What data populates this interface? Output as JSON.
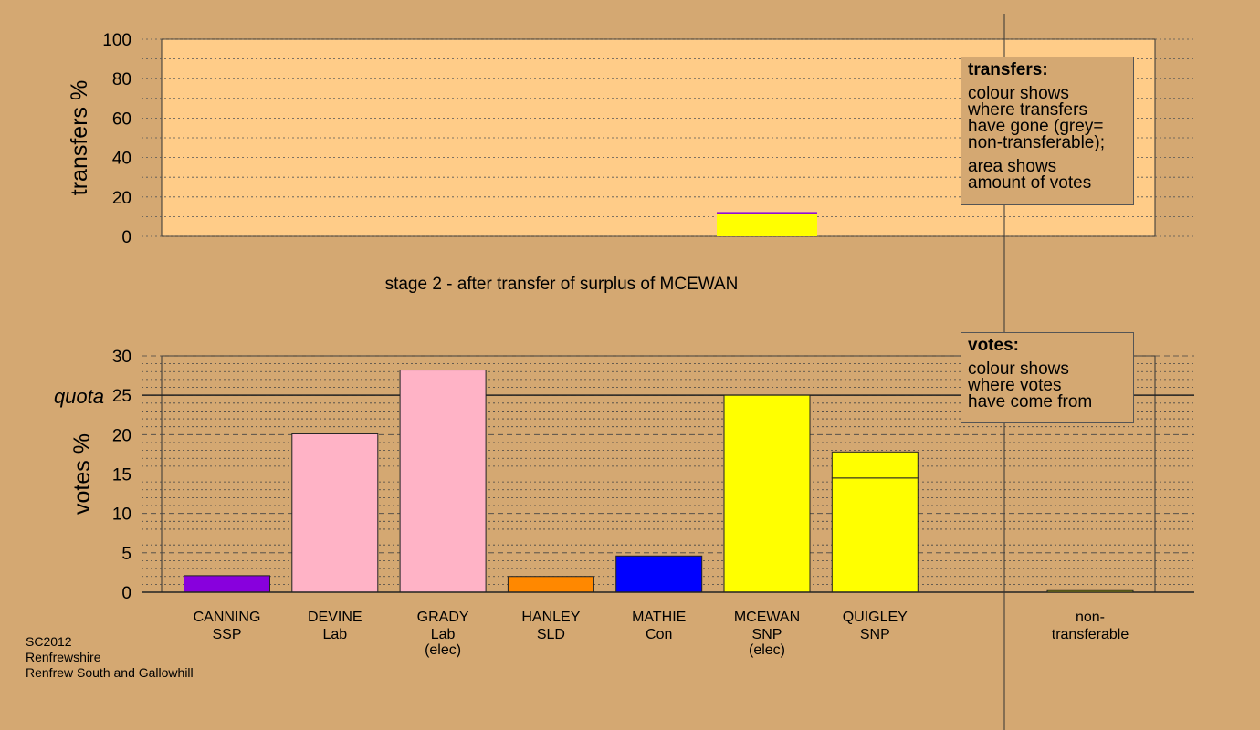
{
  "chart_data": [
    {
      "type": "bar",
      "stacked": true,
      "ylabel": "transfers %",
      "ylim": [
        0,
        100
      ],
      "yticks": [
        "100",
        "80",
        "60",
        "40",
        "20",
        "0"
      ],
      "grid": true,
      "categories": [
        "MCEWAN"
      ],
      "segments": [
        {
          "category": "MCEWAN",
          "color": "#ffff00",
          "value": 11.7
        },
        {
          "category": "MCEWAN",
          "color": "#8800dd",
          "value": 0.6
        }
      ],
      "stage_caption": "stage 2 - after transfer of surplus of MCEWAN",
      "legend": {
        "title": "transfers:",
        "line1": "colour shows",
        "line2": "where transfers",
        "line3": "have gone (grey=",
        "line4": "non-transferable);",
        "line5": "area shows",
        "line6": "amount of votes"
      }
    },
    {
      "type": "bar",
      "stacked": true,
      "ylabel": "votes %",
      "ylim": [
        0,
        30
      ],
      "yticks": [
        "30",
        "25",
        "20",
        "15",
        "10",
        "5",
        "0"
      ],
      "quota_label": "quota",
      "quota": 25,
      "grid": true,
      "categories": [
        "CANNING",
        "DEVINE",
        "GRADY",
        "HANLEY",
        "MATHIE",
        "MCEWAN",
        "QUIGLEY",
        "non-transferable"
      ],
      "candidates": [
        {
          "name": "CANNING",
          "party": "SSP",
          "status": "",
          "color": "#8800dd",
          "base": 2.1,
          "transfer": 0
        },
        {
          "name": "DEVINE",
          "party": "Lab",
          "status": "",
          "color": "#ffb3c6",
          "base": 20.1,
          "transfer": 0
        },
        {
          "name": "GRADY",
          "party": "Lab",
          "status": "(elec)",
          "color": "#ffb3c6",
          "base": 28.2,
          "transfer": 0
        },
        {
          "name": "HANLEY",
          "party": "SLD",
          "status": "",
          "color": "#ff8800",
          "base": 2.0,
          "transfer": 0
        },
        {
          "name": "MATHIE",
          "party": "Con",
          "status": "",
          "color": "#0000ff",
          "base": 4.6,
          "transfer": 0
        },
        {
          "name": "MCEWAN",
          "party": "SNP",
          "status": "(elec)",
          "color": "#ffff00",
          "base": 25.0,
          "transfer": 0
        },
        {
          "name": "QUIGLEY",
          "party": "SNP",
          "status": "",
          "color": "#ffff00",
          "base": 14.5,
          "transfer": 3.3
        },
        {
          "name": "non-",
          "party": "transferable",
          "status": "",
          "color": "#ffff00",
          "base": 0.2,
          "transfer": 0
        }
      ],
      "legend": {
        "title": "votes:",
        "line1": "colour shows",
        "line2": "where votes",
        "line3": "have come from"
      }
    }
  ],
  "footer": {
    "line1": "SC2012",
    "line2": "Renfrewshire",
    "line3": "Renfrew South and Gallowhill"
  }
}
